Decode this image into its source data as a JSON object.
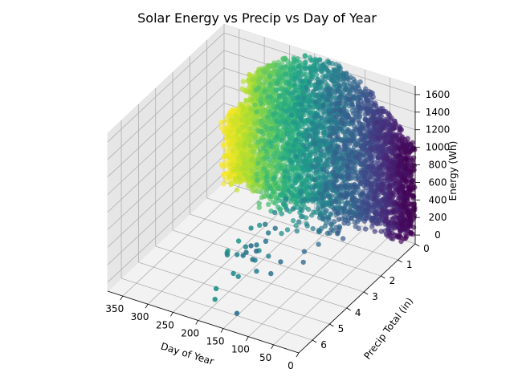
{
  "chart_data": {
    "type": "scatter",
    "projection": "3d",
    "title": "Solar Energy vs Precip vs Day of Year",
    "xlabel": "Day of Year",
    "ylabel": "Precip Total (in)",
    "zlabel": "Energy (Wh)",
    "xlim": [
      0,
      380
    ],
    "ylim": [
      0,
      6.8
    ],
    "zlim": [
      -100,
      1700
    ],
    "x_ticks": [
      "0",
      "50",
      "100",
      "150",
      "200",
      "250",
      "300",
      "350"
    ],
    "x_tick_values": [
      0,
      50,
      100,
      150,
      200,
      250,
      300,
      350
    ],
    "y_ticks": [
      "0",
      "1",
      "2",
      "3",
      "4",
      "5",
      "6"
    ],
    "y_tick_values": [
      0,
      1,
      2,
      3,
      4,
      5,
      6
    ],
    "z_ticks": [
      "0",
      "200",
      "400",
      "600",
      "800",
      "1000",
      "1200",
      "1400",
      "1600"
    ],
    "z_tick_values": [
      0,
      200,
      400,
      600,
      800,
      1000,
      1200,
      1400,
      1600
    ],
    "color_by": "Day of Year",
    "colormap": "viridis",
    "grid": true,
    "pane_color": "#f2f2f2",
    "points_summary": [
      {
        "day_range": [
          1,
          40
        ],
        "precip_range": [
          0,
          0.5
        ],
        "energy_range": [
          0,
          1300
        ]
      },
      {
        "day_range": [
          40,
          120
        ],
        "precip_range": [
          0,
          1.5
        ],
        "energy_range": [
          0,
          1550
        ]
      },
      {
        "day_range": [
          120,
          200
        ],
        "precip_range": [
          0,
          2.5
        ],
        "energy_range": [
          0,
          1650
        ]
      },
      {
        "day_range": [
          200,
          280
        ],
        "precip_range": [
          0,
          2.0
        ],
        "energy_range": [
          0,
          1650
        ]
      },
      {
        "day_range": [
          280,
          365
        ],
        "precip_range": [
          0,
          1.0
        ],
        "energy_range": [
          0,
          1150
        ]
      }
    ],
    "outliers": [
      {
        "day": 365,
        "precip": 0.0,
        "energy": 0
      },
      {
        "day": 365,
        "precip": 0.0,
        "energy": 20
      },
      {
        "day": 140,
        "precip": 6.3,
        "energy": 0
      },
      {
        "day": 160,
        "precip": 3.5,
        "energy": 600
      },
      {
        "day": 175,
        "precip": 1.8,
        "energy": 900
      }
    ]
  }
}
